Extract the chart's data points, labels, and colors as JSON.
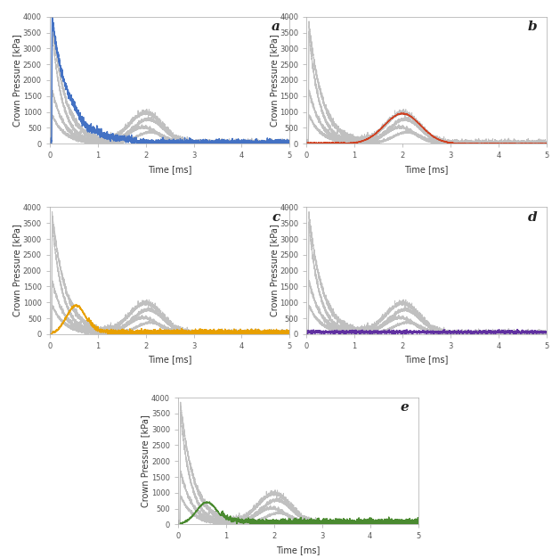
{
  "subplot_labels": [
    "a",
    "b",
    "c",
    "d",
    "e"
  ],
  "xlabel": "Time [ms]",
  "ylabel": "Crown Pressure [kPa]",
  "xlim": [
    0,
    5
  ],
  "ylim": [
    0,
    4000
  ],
  "yticks": [
    0,
    500,
    1000,
    1500,
    2000,
    2500,
    3000,
    3500,
    4000
  ],
  "xticks": [
    0,
    1,
    2,
    3,
    4,
    5
  ],
  "colors": {
    "gray": "#c0c0c0",
    "blue": "#4472c4",
    "red": "#d04020",
    "orange": "#e8a000",
    "purple": "#6030a0",
    "green": "#4a8a30"
  },
  "linewidth_colored": 1.0,
  "linewidth_gray": 0.7,
  "background_color": "#ffffff",
  "tick_fontsize": 6,
  "label_fontsize": 7,
  "sublabel_fontsize": 11
}
